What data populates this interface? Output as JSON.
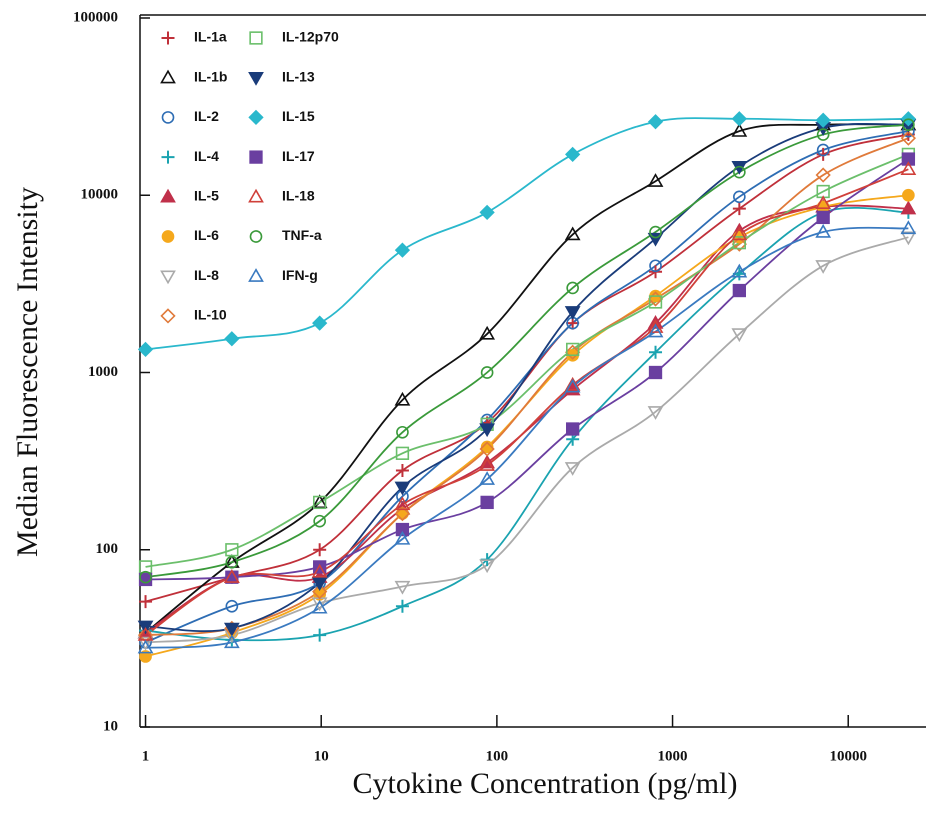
{
  "chart_data": {
    "type": "scatter",
    "x_label": "Cytokine Concentration (pg/ml)",
    "y_label": "Median Fluorescence Intensity",
    "x": [
      1,
      3.1,
      9.8,
      29,
      88,
      270,
      800,
      2400,
      7200,
      22000
    ],
    "xlim": [
      0.93,
      27000
    ],
    "ylim": [
      10,
      100000
    ],
    "log_x": true,
    "log_y": true,
    "xticks": [
      1,
      10,
      100,
      1000,
      10000
    ],
    "yticks": [
      10,
      100,
      1000,
      10000,
      100000
    ],
    "legend": "top-left",
    "series": [
      {
        "name": "IL-1a",
        "color": "#c0303a",
        "marker": "plus",
        "values": [
          51,
          70,
          100,
          280,
          520,
          1900,
          3700,
          8400,
          17000,
          22000
        ]
      },
      {
        "name": "IL-1b",
        "color": "#111111",
        "marker": "triangle-open",
        "values": [
          34,
          85,
          185,
          700,
          1650,
          6000,
          12000,
          23000,
          25000,
          25000
        ]
      },
      {
        "name": "IL-2",
        "color": "#2e6db4",
        "marker": "circle-open",
        "values": [
          30,
          48,
          65,
          200,
          540,
          1900,
          4000,
          9800,
          18000,
          23000
        ]
      },
      {
        "name": "IL-4",
        "color": "#1aa3b0",
        "marker": "plus",
        "values": [
          35,
          31,
          33,
          48,
          88,
          420,
          1300,
          3600,
          8000,
          8000
        ]
      },
      {
        "name": "IL-5",
        "color": "#c0304a",
        "marker": "triangle-filled",
        "values": [
          34,
          70,
          70,
          170,
          310,
          800,
          1900,
          6300,
          8600,
          8400
        ]
      },
      {
        "name": "IL-6",
        "color": "#f5a81c",
        "marker": "circle-filled",
        "values": [
          25,
          34,
          56,
          160,
          380,
          1250,
          2700,
          5800,
          8600,
          10000
        ]
      },
      {
        "name": "IL-8",
        "color": "#aaaaaa",
        "marker": "down-triangle-open",
        "values": [
          30,
          33,
          50,
          62,
          82,
          290,
          600,
          1650,
          4000,
          5800
        ]
      },
      {
        "name": "IL-10",
        "color": "#e07a3a",
        "marker": "diamond-open",
        "values": [
          33,
          36,
          58,
          160,
          370,
          1300,
          2600,
          5300,
          13000,
          21000
        ]
      },
      {
        "name": "IL-12p70",
        "color": "#6bbf6b",
        "marker": "square-open",
        "values": [
          80,
          100,
          185,
          350,
          510,
          1350,
          2500,
          5400,
          10500,
          17000
        ]
      },
      {
        "name": "IL-13",
        "color": "#1a3c7a",
        "marker": "down-triangle-filled",
        "values": [
          37,
          36,
          65,
          225,
          480,
          2200,
          5700,
          14500,
          24000,
          25000
        ]
      },
      {
        "name": "IL-15",
        "color": "#2ab8cc",
        "marker": "diamond-filled",
        "values": [
          1350,
          1550,
          1900,
          4900,
          8000,
          17000,
          26000,
          27000,
          26500,
          27000
        ]
      },
      {
        "name": "IL-17",
        "color": "#6a3fa0",
        "marker": "square-filled",
        "values": [
          68,
          70,
          80,
          130,
          185,
          480,
          1000,
          2900,
          7500,
          16000
        ]
      },
      {
        "name": "IL-18",
        "color": "#d0403a",
        "marker": "triangle-open",
        "values": [
          33,
          70,
          75,
          180,
          300,
          850,
          1800,
          6000,
          9000,
          14000
        ]
      },
      {
        "name": "TNF-a",
        "color": "#3a9a3a",
        "marker": "circle-open",
        "values": [
          70,
          85,
          145,
          460,
          1000,
          3000,
          6200,
          13500,
          22000,
          25000
        ]
      },
      {
        "name": "IFN-g",
        "color": "#3a7ac0",
        "marker": "triangle-open",
        "values": [
          28,
          30,
          47,
          115,
          250,
          830,
          1700,
          3700,
          6200,
          6500
        ]
      }
    ]
  }
}
